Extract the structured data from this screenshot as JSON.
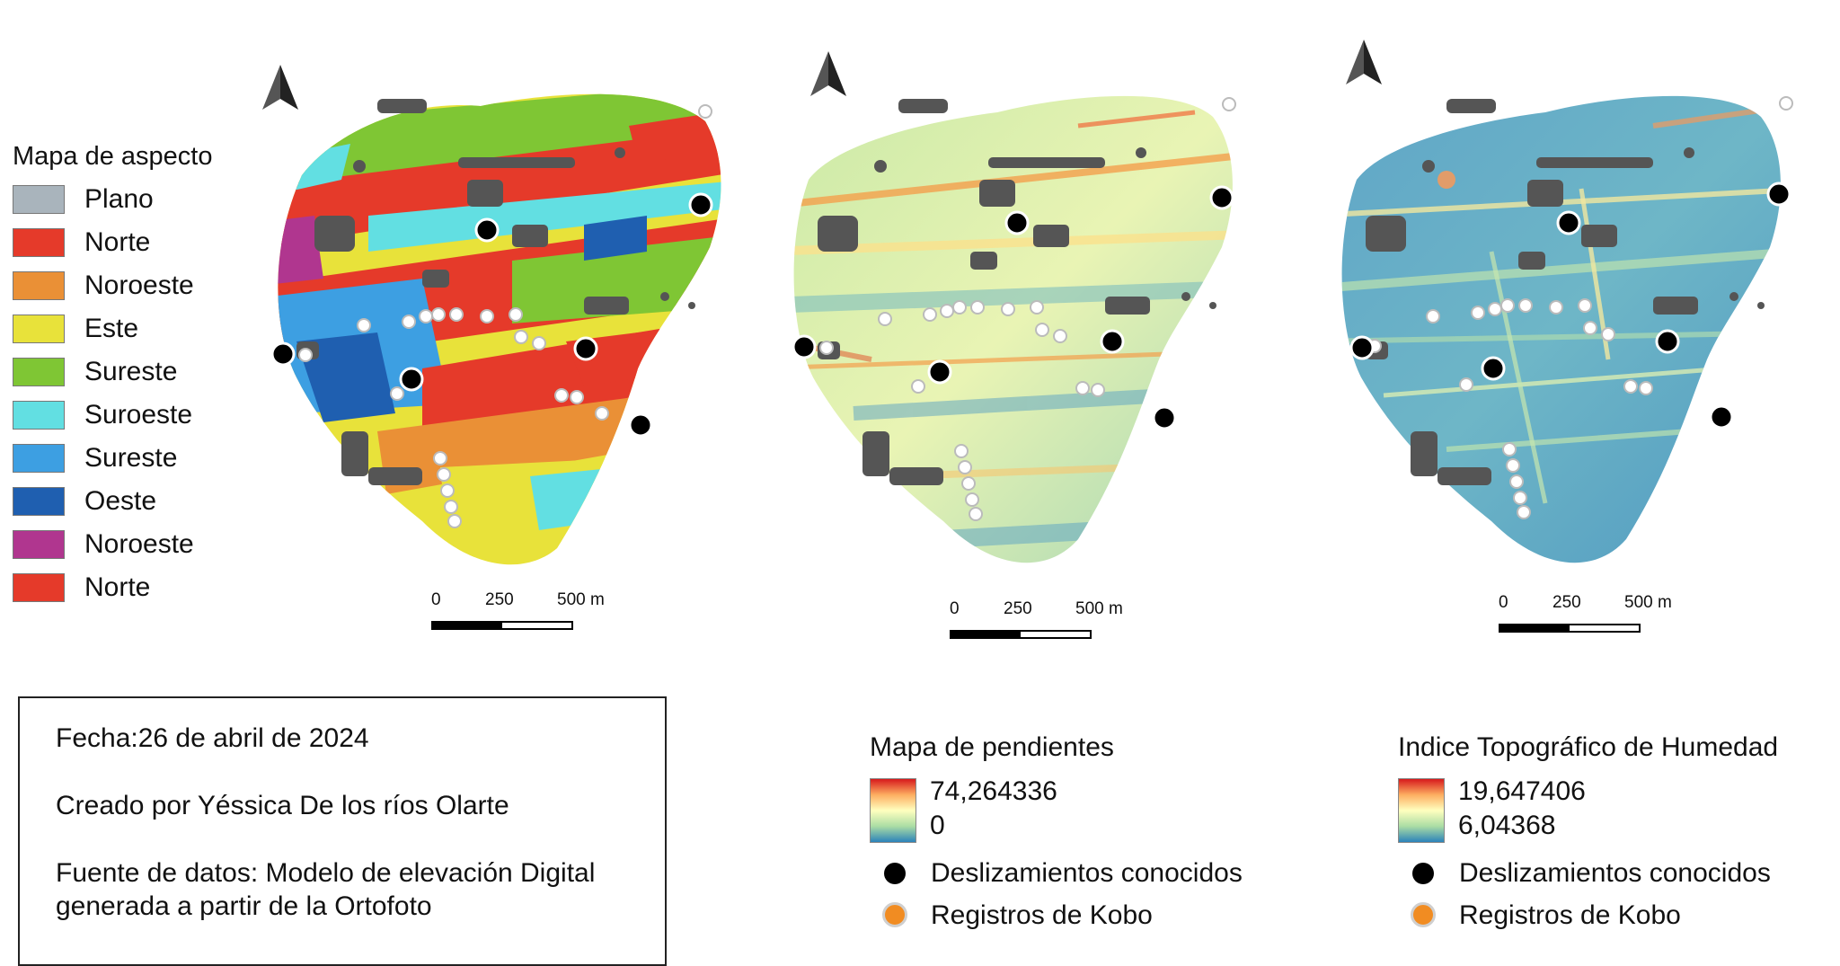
{
  "aspect_legend": {
    "title": "Mapa de aspecto",
    "items": [
      {
        "label": "Plano",
        "color": "#a9b4bc"
      },
      {
        "label": "Norte",
        "color": "#e53a2a"
      },
      {
        "label": "Noroeste",
        "color": "#ea9036"
      },
      {
        "label": "Este",
        "color": "#e8e23a"
      },
      {
        "label": "Sureste",
        "color": "#7fc634"
      },
      {
        "label": "Suroeste",
        "color": "#62dfe2"
      },
      {
        "label": "Sureste",
        "color": "#3d9fe2"
      },
      {
        "label": "Oeste",
        "color": "#1f5fb0"
      },
      {
        "label": "Noroeste",
        "color": "#b0368f"
      },
      {
        "label": "Norte",
        "color": "#e53a2a"
      }
    ]
  },
  "info": {
    "date": "Fecha:26 de abril de 2024",
    "author": "Creado por Yéssica De los ríos Olarte",
    "source_line1": "Fuente de datos: Modelo de elevación Digital",
    "source_line2": "generada a partir de la Ortofoto"
  },
  "slope_legend": {
    "title": "Mapa de pendientes",
    "max": "74,264336",
    "min": "0",
    "landslides_label": "Deslizamientos conocidos",
    "kobo_label": "Registros de Kobo"
  },
  "twi_legend": {
    "title": "Indice Topográfico de Humedad",
    "max": "19,647406",
    "min": "6,04368",
    "landslides_label": "Deslizamientos conocidos",
    "kobo_label": "Registros de Kobo"
  },
  "scale": {
    "label_0": "0",
    "label_250": "250",
    "label_500": "500 m"
  },
  "colors": {
    "ramp_high": "#d7191c",
    "ramp_low": "#2b83ba",
    "landslide_marker": "#000000",
    "kobo_marker": "#f18c22",
    "features": "#555555"
  },
  "icons": {
    "north_arrow": "north-arrow-icon"
  }
}
